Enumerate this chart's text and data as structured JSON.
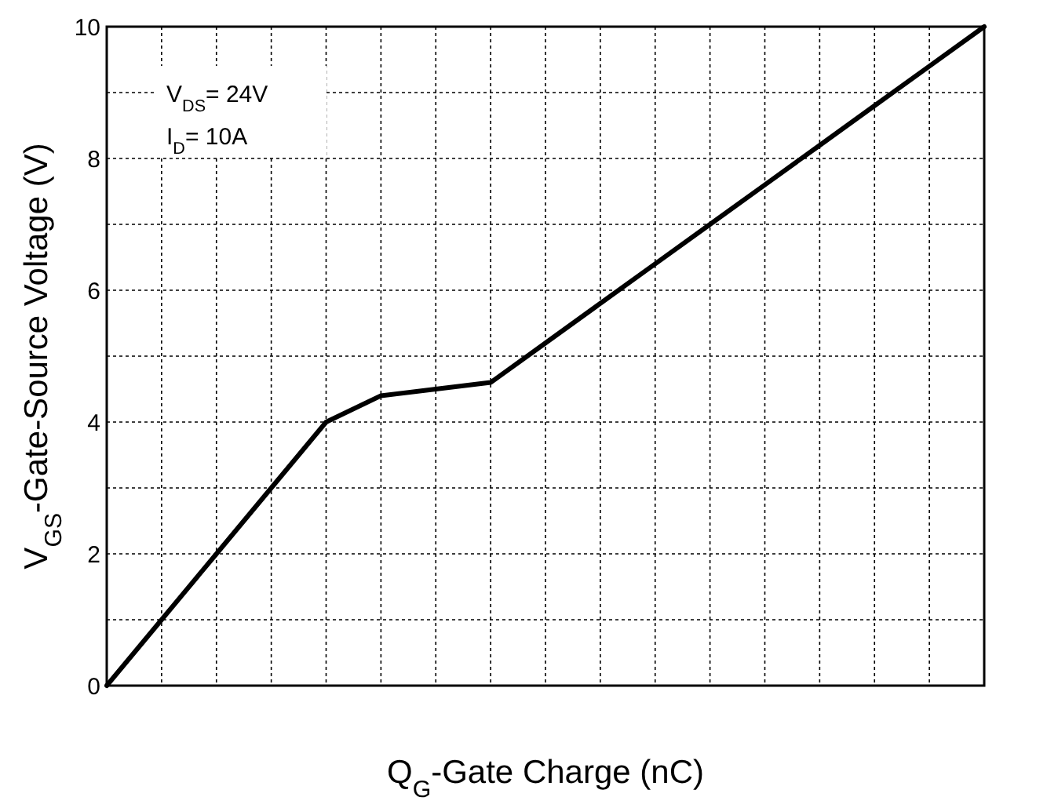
{
  "chart_data": {
    "type": "line",
    "xlabel": "Q$_{G}$-Gate Charge (nC)",
    "ylabel": "V$_{GS}$-Gate-Source Voltage (V)",
    "annotations": [
      "V$_{DS}$= 24V",
      "I$_{D}$= 10A"
    ],
    "categories": [
      null,
      null,
      null,
      null,
      null,
      null,
      null,
      null,
      null,
      null,
      null,
      null,
      null,
      null,
      null,
      null,
      null
    ],
    "series": [
      {
        "color": "#000000",
        "values": [
          0,
          1,
          2,
          3,
          4,
          4.4,
          4.5,
          4.6,
          5.2,
          5.8,
          6.4,
          7,
          7.6,
          8.2,
          8.8,
          9.4,
          10
        ]
      }
    ],
    "ylim": [
      0,
      10
    ],
    "yticks": [
      0,
      {
        "value": 1,
        "label": null
      },
      2,
      {
        "value": 3,
        "label": null
      },
      4,
      {
        "value": 5,
        "label": null
      },
      6,
      {
        "value": 7,
        "label": null
      },
      8,
      {
        "value": 9,
        "label": null
      },
      10
    ],
    "grid": true,
    "tick_labels": "y",
    "marker": "none",
    "line_style": "solid"
  }
}
